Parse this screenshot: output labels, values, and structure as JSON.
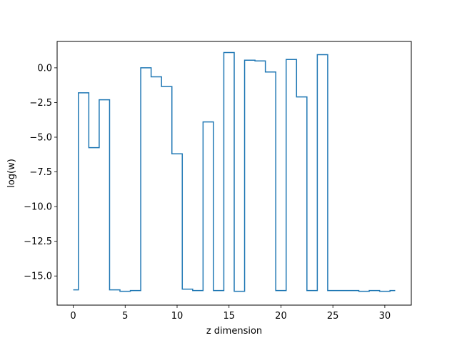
{
  "chart_data": {
    "type": "line",
    "drawstyle": "steps-mid",
    "xlabel": "z dimension",
    "ylabel": "log(w)",
    "xlim": [
      -1.55,
      32.55
    ],
    "ylim": [
      -17.1,
      1.9
    ],
    "xticks": [
      0,
      5,
      10,
      15,
      20,
      25,
      30
    ],
    "xtick_labels": [
      "0",
      "5",
      "10",
      "15",
      "20",
      "25",
      "30"
    ],
    "yticks": [
      0.0,
      -2.5,
      -5.0,
      -7.5,
      -10.0,
      -12.5,
      -15.0
    ],
    "ytick_labels": [
      "0.0",
      "−2.5",
      "−5.0",
      "−7.5",
      "−10.0",
      "−12.5",
      "−15.0"
    ],
    "grid": false,
    "series": [
      {
        "color": "#1f77b4",
        "x": [
          0,
          1,
          2,
          3,
          4,
          5,
          6,
          7,
          8,
          9,
          10,
          11,
          12,
          13,
          14,
          15,
          16,
          17,
          18,
          19,
          20,
          21,
          22,
          23,
          24,
          25,
          26,
          27,
          28,
          29,
          30,
          31
        ],
        "y": [
          -16.0,
          -1.8,
          -5.75,
          -2.3,
          -16.0,
          -16.1,
          -16.05,
          0.0,
          -0.65,
          -1.35,
          -6.2,
          -15.95,
          -16.05,
          -3.9,
          -16.05,
          1.1,
          -16.1,
          0.55,
          0.5,
          -0.3,
          -16.05,
          0.6,
          -2.1,
          -16.05,
          0.95,
          -16.05,
          -16.05,
          -16.05,
          -16.1,
          -16.05,
          -16.1,
          -16.05
        ]
      }
    ]
  }
}
